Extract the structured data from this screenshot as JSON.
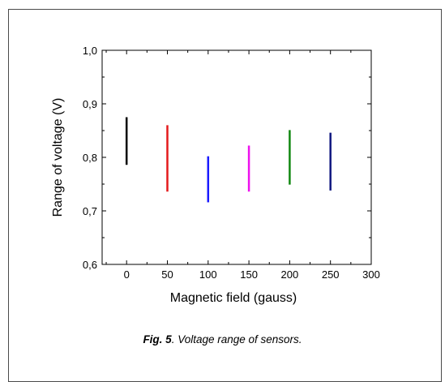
{
  "caption": {
    "label": "Fig. 5",
    "text": ". Voltage range of sensors."
  },
  "chart_data": {
    "type": "range-bar",
    "xlabel": "Magnetic field (gauss)",
    "ylabel": "Range of voltage (V)",
    "xlim": [
      -30,
      300
    ],
    "ylim": [
      0.6,
      1.0
    ],
    "x_ticks": [
      0,
      50,
      100,
      150,
      200,
      250,
      300
    ],
    "y_ticks": [
      0.6,
      0.7,
      0.8,
      0.9,
      1.0
    ],
    "y_tick_labels": [
      "0,6",
      "0,7",
      "0,8",
      "0,9",
      "1,0"
    ],
    "grid": false,
    "series": [
      {
        "x": 0,
        "low": 0.786,
        "high": 0.875,
        "color": "#000000"
      },
      {
        "x": 50,
        "low": 0.736,
        "high": 0.86,
        "color": "#e41a1c"
      },
      {
        "x": 100,
        "low": 0.716,
        "high": 0.802,
        "color": "#1a1aff"
      },
      {
        "x": 150,
        "low": 0.736,
        "high": 0.822,
        "color": "#ee11ee"
      },
      {
        "x": 200,
        "low": 0.749,
        "high": 0.851,
        "color": "#118811"
      },
      {
        "x": 250,
        "low": 0.738,
        "high": 0.846,
        "color": "#101880"
      }
    ]
  }
}
